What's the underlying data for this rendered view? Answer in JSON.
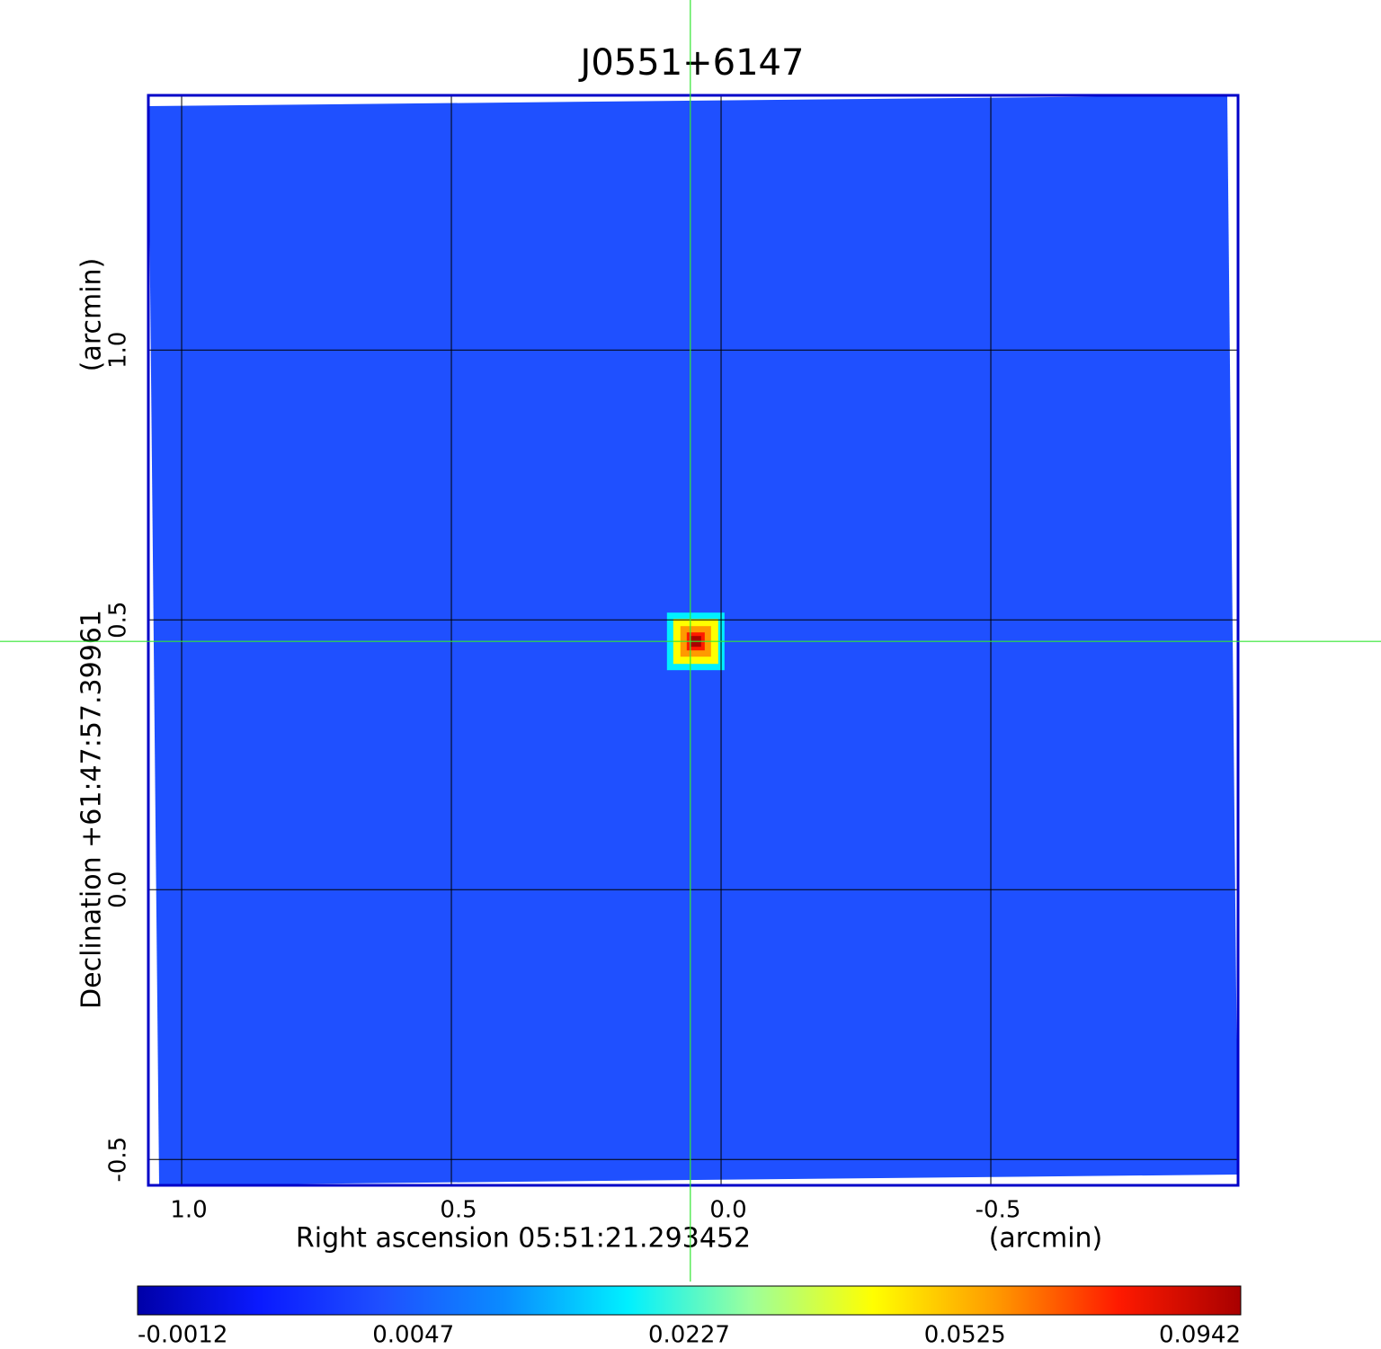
{
  "chart_data": {
    "type": "image",
    "title": "J0551+6147",
    "title_color": "#0a14d6",
    "xlabel": "Right ascension  05:51:21.293452",
    "xunit": "(arcmin)",
    "ylabel": "Declination  +61:47:57.39961",
    "yunit": "(arcmin)",
    "xlim": [
      1.0617,
      -0.9583
    ],
    "ylim": [
      -0.548,
      1.472
    ],
    "xticks": [
      {
        "value": 1,
        "label": "1.0"
      },
      0.5,
      {
        "value": 0,
        "label": "0.0"
      },
      -0.5
    ],
    "yticks": [
      -0.5,
      {
        "value": 0,
        "label": "0.0"
      },
      0.5,
      {
        "value": 1,
        "label": "1.0"
      }
    ],
    "grid": true,
    "frame_color": "#0000c8",
    "image_color": "#1f50ff",
    "source": {
      "x": 0.047,
      "y": 0.46,
      "peak": 0.0942
    },
    "crosshair": {
      "x": 0.057,
      "y": 0.46,
      "color": "#33e633"
    },
    "colorbar": {
      "ticks": [
        -0.0012,
        0.0047,
        0.0227,
        0.0525,
        0.0942
      ],
      "colormap": [
        "#0000a8",
        "#0a1aff",
        "#1f50ff",
        "#0a8cff",
        "#00f0ff",
        "#9cff9c",
        "#ffff00",
        "#ff9a00",
        "#ff1a00",
        "#a80000"
      ]
    }
  }
}
